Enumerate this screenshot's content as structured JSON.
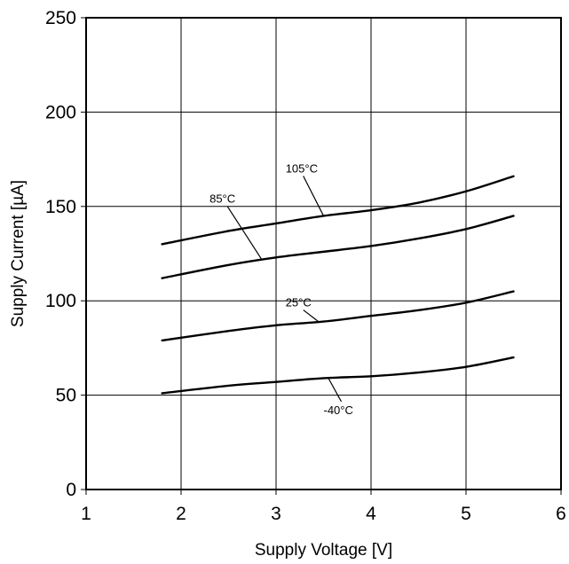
{
  "chart_data": {
    "type": "line",
    "title": "",
    "xlabel": "Supply Voltage [V]",
    "ylabel": "Supply Current [µA]",
    "xlim": [
      1,
      6
    ],
    "ylim": [
      0,
      250
    ],
    "x_ticks": [
      "1",
      "2",
      "3",
      "4",
      "5",
      "6"
    ],
    "y_ticks": [
      "0",
      "50",
      "100",
      "150",
      "200",
      "250"
    ],
    "grid": true,
    "series": [
      {
        "name": "105°C",
        "x": [
          1.8,
          2.5,
          3.0,
          3.5,
          4.0,
          4.5,
          5.0,
          5.5
        ],
        "y": [
          130,
          137,
          141,
          145,
          148,
          152,
          158,
          166
        ]
      },
      {
        "name": "85°C",
        "x": [
          1.8,
          2.5,
          3.0,
          3.5,
          4.0,
          4.5,
          5.0,
          5.5
        ],
        "y": [
          112,
          119,
          123,
          126,
          129,
          133,
          138,
          145
        ]
      },
      {
        "name": "25°C",
        "x": [
          1.8,
          2.5,
          3.0,
          3.5,
          4.0,
          4.5,
          5.0,
          5.5
        ],
        "y": [
          79,
          84,
          87,
          89,
          92,
          95,
          99,
          105
        ]
      },
      {
        "name": "-40°C",
        "x": [
          1.8,
          2.5,
          3.0,
          3.5,
          4.0,
          4.5,
          5.0,
          5.5
        ],
        "y": [
          51,
          55,
          57,
          59,
          60,
          62,
          65,
          70
        ]
      }
    ],
    "annotations": [
      {
        "series": "105°C",
        "text": "105°C",
        "at_x": 3.5,
        "label_x": 3.1,
        "label_y": 168
      },
      {
        "series": "85°C",
        "text": "85°C",
        "at_x": 2.85,
        "label_x": 2.3,
        "label_y": 152
      },
      {
        "series": "25°C",
        "text": "25°C",
        "at_x": 3.45,
        "label_x": 3.1,
        "label_y": 97
      },
      {
        "series": "-40°C",
        "text": "-40°C",
        "at_x": 3.55,
        "label_x": 3.5,
        "label_y": 40
      }
    ]
  }
}
